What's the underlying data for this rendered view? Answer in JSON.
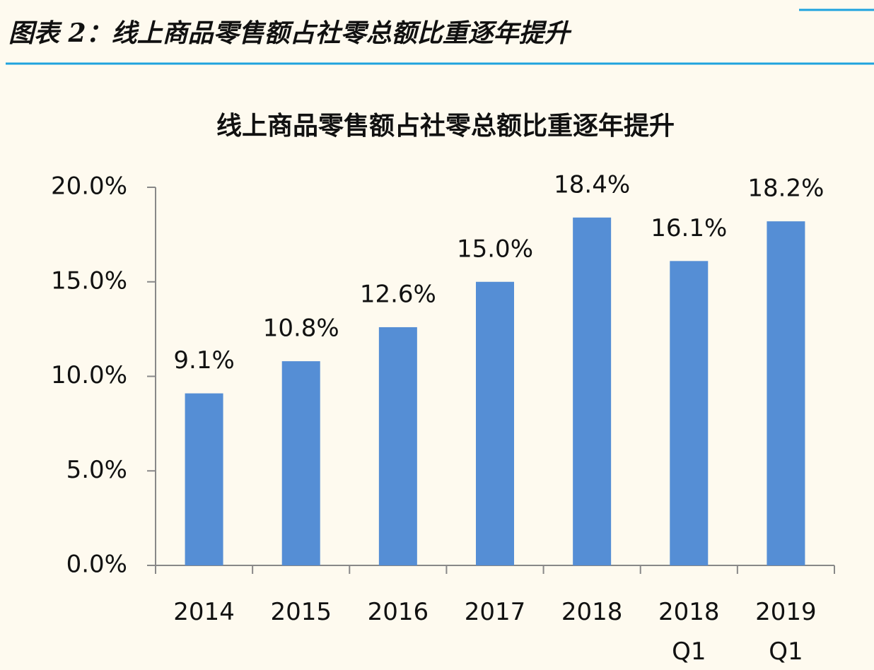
{
  "caption": "图表 2：线上商品零售额占社零总额比重逐年提升",
  "chart_data": {
    "type": "bar",
    "title": "线上商品零售额占社零总额比重逐年提升",
    "categories": [
      "2014",
      "2015",
      "2016",
      "2017",
      "2018",
      "2018\nQ1",
      "2019\nQ1"
    ],
    "values": [
      9.1,
      10.8,
      12.6,
      15.0,
      18.4,
      16.1,
      18.2
    ],
    "value_labels": [
      "9.1%",
      "10.8%",
      "12.6%",
      "15.0%",
      "18.4%",
      "16.1%",
      "18.2%"
    ],
    "color": "#558ed5",
    "ylim": [
      0,
      20
    ],
    "yticks": [
      {
        "value": 0,
        "label": "0.0%"
      },
      {
        "value": 5,
        "label": "5.0%"
      },
      {
        "value": 10,
        "label": "10.0%"
      },
      {
        "value": 15,
        "label": "15.0%"
      },
      {
        "value": 20,
        "label": "20.0%"
      }
    ],
    "grid": false
  }
}
